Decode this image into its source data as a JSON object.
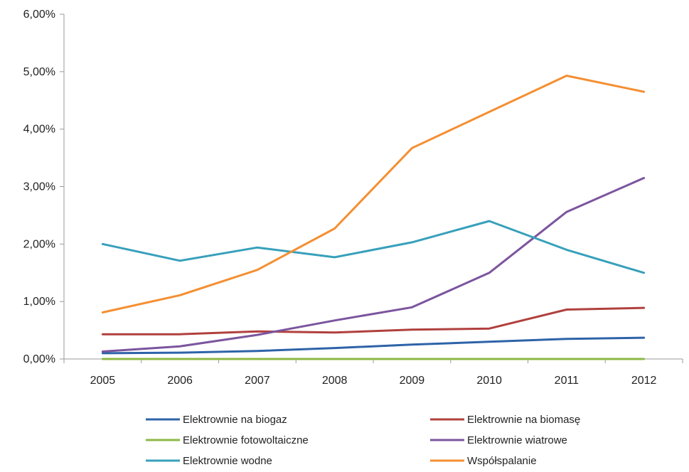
{
  "chart_data": {
    "type": "line",
    "categories": [
      "2005",
      "2006",
      "2007",
      "2008",
      "2009",
      "2010",
      "2011",
      "2012"
    ],
    "ylim": [
      0,
      6
    ],
    "y_ticks": [
      "0,00%",
      "1,00%",
      "2,00%",
      "3,00%",
      "4,00%",
      "5,00%",
      "6,00%"
    ],
    "y_unit": "%",
    "grid": false,
    "legend_position": "bottom",
    "series": [
      {
        "name": "Elektrownie na biogaz",
        "color": "#2e63a8",
        "values": [
          0.1,
          0.11,
          0.14,
          0.19,
          0.25,
          0.3,
          0.35,
          0.37
        ]
      },
      {
        "name": "Elektrownie na biomasę",
        "color": "#b0403e",
        "values": [
          0.43,
          0.43,
          0.48,
          0.46,
          0.51,
          0.53,
          0.86,
          0.89
        ]
      },
      {
        "name": "Elektrownie fotowoltaiczne",
        "color": "#8db846",
        "values": [
          0.0,
          0.0,
          0.0,
          0.0,
          0.0,
          0.0,
          0.0,
          0.0
        ]
      },
      {
        "name": "Elektrownie wiatrowe",
        "color": "#7b559e",
        "values": [
          0.13,
          0.22,
          0.42,
          0.67,
          0.9,
          1.5,
          2.56,
          3.15
        ]
      },
      {
        "name": "Elektrownie wodne",
        "color": "#37a0bb",
        "values": [
          2.0,
          1.71,
          1.94,
          1.77,
          2.03,
          2.4,
          1.9,
          1.5
        ]
      },
      {
        "name": "Współspalanie",
        "color": "#f48f32",
        "values": [
          0.81,
          1.11,
          1.55,
          2.27,
          3.67,
          4.3,
          4.93,
          4.65
        ]
      }
    ]
  }
}
